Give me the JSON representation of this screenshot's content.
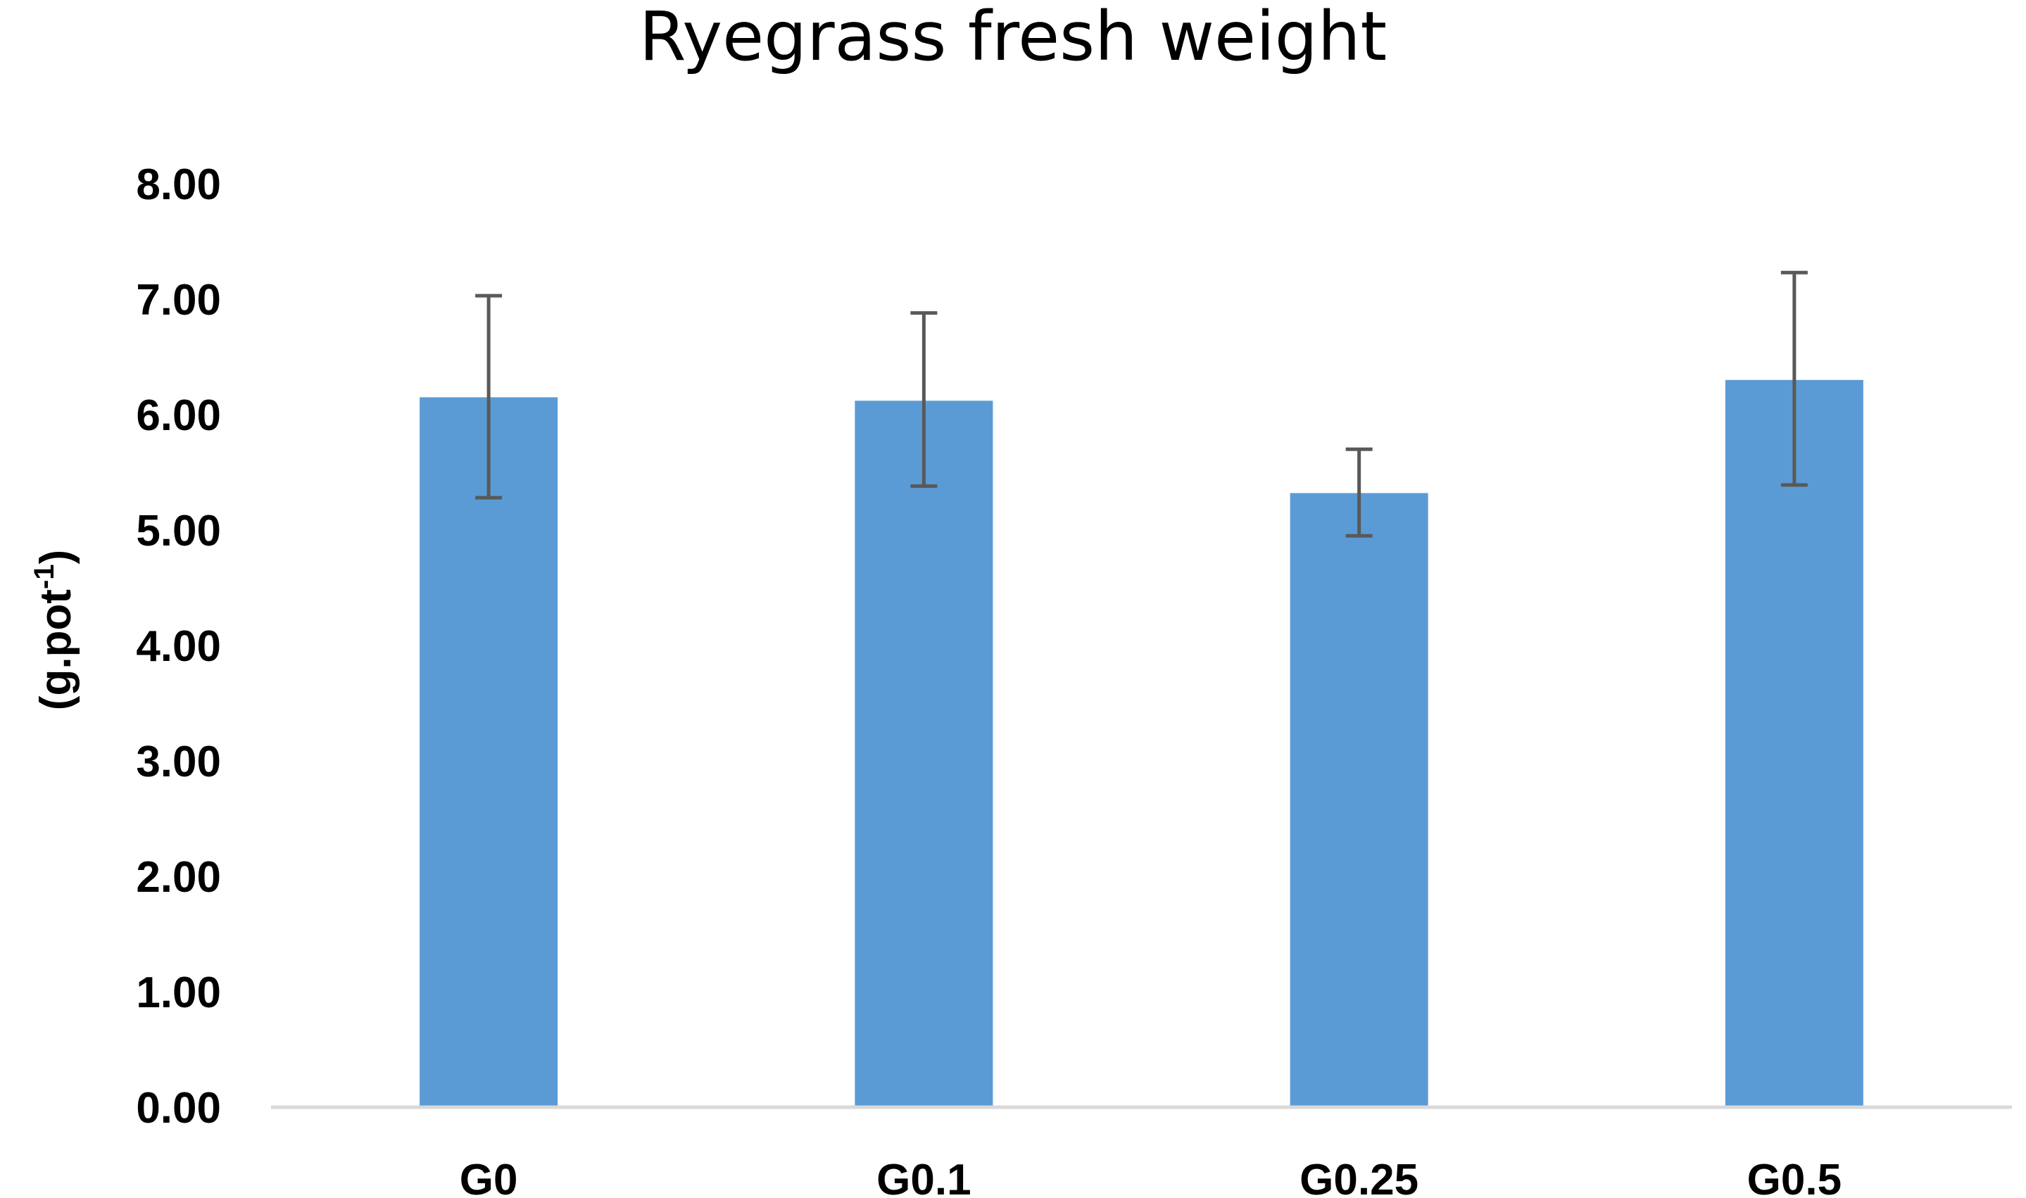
{
  "chart_data": {
    "type": "bar",
    "title": "Ryegrass fresh weight",
    "xlabel": "",
    "ylabel": {
      "main": "(g.pot",
      "superscript": "-1",
      "close": ")"
    },
    "categories": [
      "G0",
      "G0.1",
      "G0.25",
      "G0.5"
    ],
    "values": [
      6.15,
      6.12,
      5.32,
      6.3
    ],
    "error_upper": [
      7.03,
      6.88,
      5.7,
      7.23
    ],
    "error_lower": [
      5.28,
      5.38,
      4.95,
      5.39
    ],
    "ylim": [
      0,
      8
    ],
    "yticks": [
      "0.00",
      "1.00",
      "2.00",
      "3.00",
      "4.00",
      "5.00",
      "6.00",
      "7.00",
      "8.00"
    ],
    "bar_color": "#5b9bd5",
    "error_color": "#595959",
    "axis_color": "#d9d9d9",
    "grid": false,
    "legend": "none"
  }
}
